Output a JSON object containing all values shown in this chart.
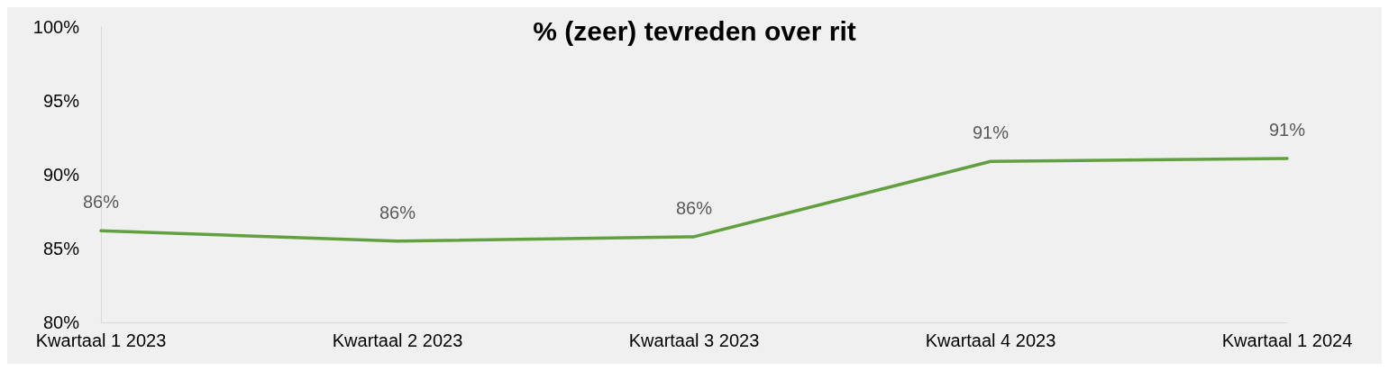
{
  "chart_data": {
    "type": "line",
    "title": "% (zeer) tevreden over rit",
    "categories": [
      "Kwartaal 1 2023",
      "Kwartaal 2 2023",
      "Kwartaal 3 2023",
      "Kwartaal 4 2023",
      "Kwartaal 1 2024"
    ],
    "series": [
      {
        "color": "#62a03f",
        "values": [
          86.2,
          85.5,
          85.8,
          90.9,
          91.1
        ],
        "value_labels": [
          "86%",
          "86%",
          "86%",
          "91%",
          "91%"
        ]
      }
    ],
    "ylim": [
      80,
      100
    ],
    "yticks": [
      {
        "value": 80,
        "label": "80%"
      },
      {
        "value": 85,
        "label": "85%"
      },
      {
        "value": 90,
        "label": "90%"
      },
      {
        "value": 95,
        "label": "95%"
      },
      {
        "value": 100,
        "label": "100%"
      }
    ],
    "grid": false,
    "marker": "none",
    "line_style": "solid"
  }
}
